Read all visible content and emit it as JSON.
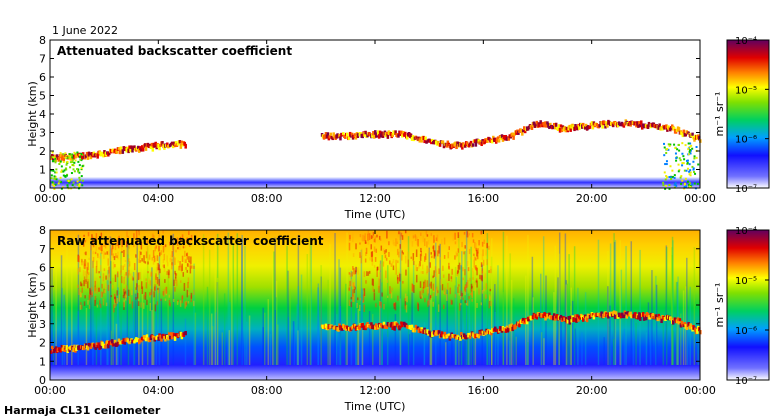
{
  "header": {
    "date": "1 June 2022",
    "instrument": "Harmaja CL31 ceilometer"
  },
  "chart_data": [
    {
      "type": "heatmap",
      "title": "Attenuated backscatter coefficient",
      "xlabel": "Time (UTC)",
      "ylabel": "Height (km)",
      "xticks": [
        "00:00",
        "04:00",
        "08:00",
        "12:00",
        "16:00",
        "20:00",
        "00:00"
      ],
      "yticks": [
        "0",
        "1",
        "2",
        "3",
        "4",
        "5",
        "6",
        "7",
        "8"
      ],
      "xlim": [
        0,
        24
      ],
      "ylim": [
        0,
        8
      ],
      "colorbar": {
        "label": "m⁻¹ sr⁻¹",
        "ticks": [
          "10⁻⁴",
          "10⁻⁵",
          "10⁻⁶",
          "10⁻⁷"
        ],
        "range": [
          1e-07,
          0.0001
        ],
        "scale": "log"
      },
      "cloud_layer_km": [
        [
          0.0,
          1.6
        ],
        [
          1.0,
          1.7
        ],
        [
          2.0,
          1.9
        ],
        [
          3.0,
          2.1
        ],
        [
          4.0,
          2.3
        ],
        [
          5.0,
          2.4
        ],
        [
          10.0,
          2.8
        ],
        [
          11.0,
          2.8
        ],
        [
          12.0,
          2.9
        ],
        [
          13.0,
          2.9
        ],
        [
          14.0,
          2.5
        ],
        [
          15.0,
          2.3
        ],
        [
          16.0,
          2.5
        ],
        [
          17.0,
          2.8
        ],
        [
          18.0,
          3.5
        ],
        [
          19.0,
          3.2
        ],
        [
          20.0,
          3.4
        ],
        [
          21.0,
          3.5
        ],
        [
          22.0,
          3.4
        ],
        [
          23.0,
          3.2
        ],
        [
          24.0,
          2.6
        ]
      ]
    },
    {
      "type": "heatmap",
      "title": "Raw attenuated backscatter coefficient",
      "xlabel": "Time (UTC)",
      "ylabel": "Height (km)",
      "xticks": [
        "00:00",
        "04:00",
        "08:00",
        "12:00",
        "16:00",
        "20:00",
        "00:00"
      ],
      "yticks": [
        "0",
        "1",
        "2",
        "3",
        "4",
        "5",
        "6",
        "7",
        "8"
      ],
      "xlim": [
        0,
        24
      ],
      "ylim": [
        0,
        8
      ],
      "colorbar": {
        "label": "m⁻¹ sr⁻¹",
        "ticks": [
          "10⁻⁴",
          "10⁻⁵",
          "10⁻⁶",
          "10⁻⁷"
        ],
        "range": [
          1e-07,
          0.0001
        ],
        "scale": "log"
      },
      "cloud_layer_km": [
        [
          0.0,
          1.6
        ],
        [
          1.0,
          1.7
        ],
        [
          2.0,
          1.9
        ],
        [
          3.0,
          2.1
        ],
        [
          4.0,
          2.3
        ],
        [
          5.0,
          2.4
        ],
        [
          10.0,
          2.8
        ],
        [
          11.0,
          2.8
        ],
        [
          12.0,
          2.9
        ],
        [
          13.0,
          2.9
        ],
        [
          14.0,
          2.5
        ],
        [
          15.0,
          2.3
        ],
        [
          16.0,
          2.5
        ],
        [
          17.0,
          2.8
        ],
        [
          18.0,
          3.5
        ],
        [
          19.0,
          3.2
        ],
        [
          20.0,
          3.4
        ],
        [
          21.0,
          3.5
        ],
        [
          22.0,
          3.4
        ],
        [
          23.0,
          3.2
        ],
        [
          24.0,
          2.6
        ]
      ]
    }
  ]
}
